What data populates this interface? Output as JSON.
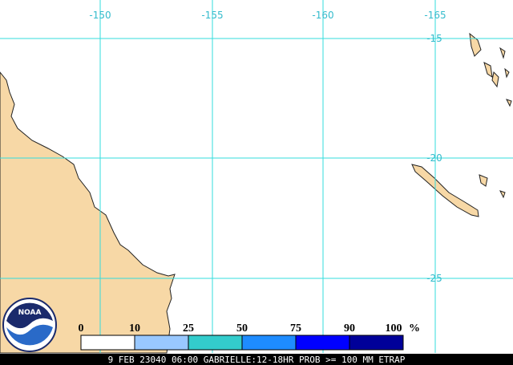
{
  "map": {
    "lon_labels": [
      "-150",
      "-155",
      "-160",
      "-165"
    ],
    "lat_labels": [
      "-15",
      "-20",
      "-25"
    ]
  },
  "legend": {
    "labels": [
      "0",
      "10",
      "25",
      "50",
      "75",
      "90",
      "100"
    ],
    "unit": "%",
    "colors": [
      "#ffffff",
      "#99c8ff",
      "#33cccc",
      "#1e8cff",
      "#0000ff",
      "#000099"
    ]
  },
  "logo": "NOAA",
  "footer": "9 FEB 23040 06:00 GABRIELLE:12-18HR PROB >= 100 MM ETRAP"
}
